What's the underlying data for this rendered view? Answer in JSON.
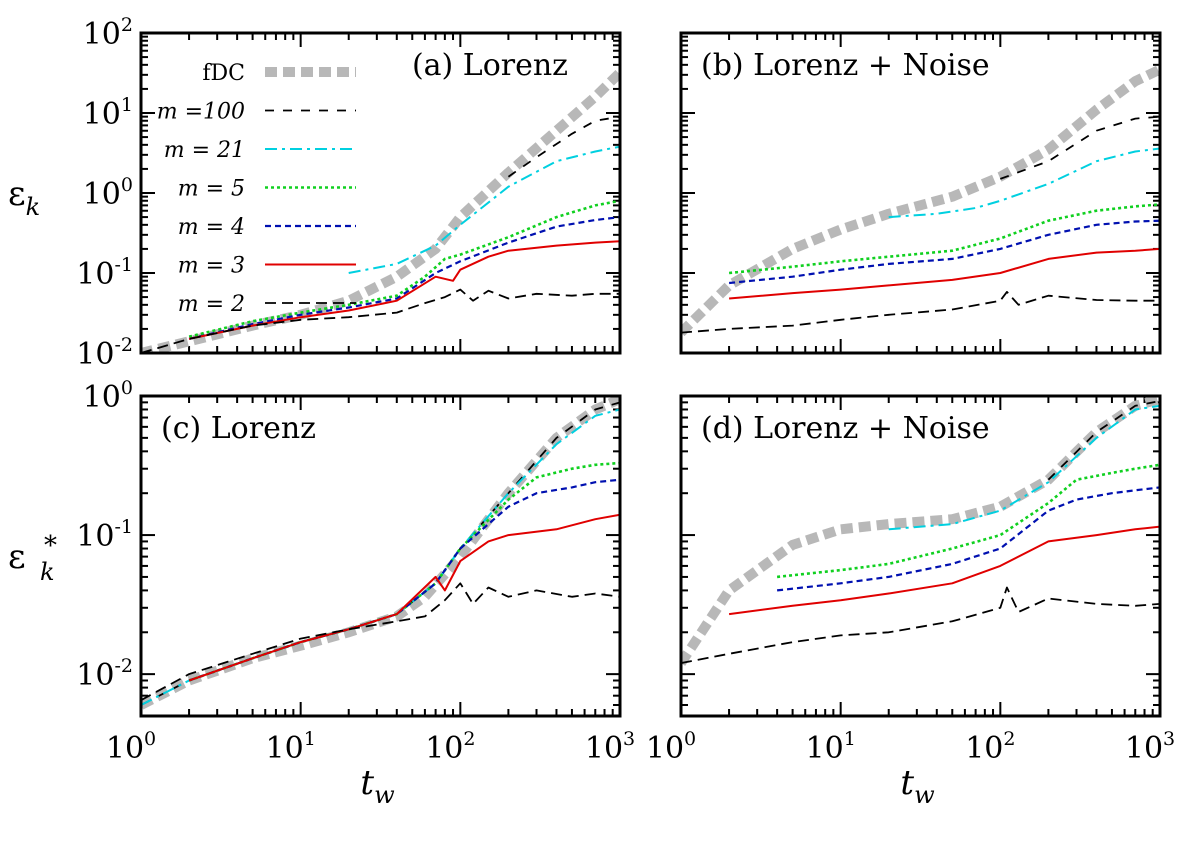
{
  "chart_data": [
    {
      "type": "line",
      "id": "a",
      "title": "(a) Lorenz",
      "xlabel": "",
      "ylabel_base": "ε",
      "ylabel_sub": "k",
      "ylabel_sup": "",
      "log_x": true,
      "log_y": true,
      "xlim": [
        1,
        1000
      ],
      "ylim": [
        0.01,
        100
      ],
      "x_ticks": [
        {
          "base": "10",
          "exp": "0"
        },
        {
          "base": "10",
          "exp": "1"
        },
        {
          "base": "10",
          "exp": "2"
        },
        {
          "base": "10",
          "exp": "3"
        }
      ],
      "y_ticks": [
        {
          "base": "10",
          "exp": "-2"
        },
        {
          "base": "10",
          "exp": "-1"
        },
        {
          "base": "10",
          "exp": "0"
        },
        {
          "base": "10",
          "exp": "1"
        },
        {
          "base": "10",
          "exp": "2"
        }
      ],
      "show_x_tick_labels": false,
      "show_y_tick_labels": true,
      "series": [
        {
          "name": "fDC",
          "x": [
            1,
            2,
            5,
            10,
            20,
            40,
            70,
            100,
            200,
            400,
            700,
            1000
          ],
          "y": [
            0.01,
            0.014,
            0.022,
            0.03,
            0.045,
            0.09,
            0.2,
            0.5,
            1.8,
            6,
            16,
            32
          ]
        },
        {
          "name": "m =100",
          "x": [
            200,
            300,
            500,
            700,
            1000
          ],
          "y": [
            1.6,
            2.8,
            5.5,
            8,
            9
          ]
        },
        {
          "name": "m = 21",
          "x": [
            20,
            40,
            70,
            100,
            200,
            400,
            700,
            1000
          ],
          "y": [
            0.1,
            0.13,
            0.22,
            0.4,
            1.2,
            2.5,
            3.3,
            3.8
          ]
        },
        {
          "name": "m = 5",
          "x": [
            2,
            5,
            10,
            20,
            40,
            60,
            80,
            100,
            200,
            400,
            700,
            1000
          ],
          "y": [
            0.016,
            0.025,
            0.032,
            0.04,
            0.052,
            0.09,
            0.15,
            0.17,
            0.28,
            0.5,
            0.7,
            0.8
          ]
        },
        {
          "name": "m = 4",
          "x": [
            2,
            5,
            10,
            20,
            40,
            70,
            100,
            200,
            400,
            700,
            1000
          ],
          "y": [
            0.015,
            0.023,
            0.03,
            0.037,
            0.048,
            0.1,
            0.14,
            0.24,
            0.38,
            0.46,
            0.5
          ]
        },
        {
          "name": "m = 3",
          "x": [
            2,
            5,
            10,
            20,
            40,
            70,
            90,
            100,
            150,
            200,
            400,
            700,
            1000
          ],
          "y": [
            0.015,
            0.022,
            0.028,
            0.034,
            0.045,
            0.09,
            0.08,
            0.11,
            0.16,
            0.19,
            0.22,
            0.24,
            0.25
          ]
        },
        {
          "name": "m = 2",
          "x": [
            1,
            2,
            5,
            10,
            20,
            40,
            60,
            80,
            100,
            120,
            150,
            200,
            300,
            500,
            700,
            1000
          ],
          "y": [
            0.01,
            0.015,
            0.022,
            0.026,
            0.028,
            0.032,
            0.042,
            0.05,
            0.062,
            0.045,
            0.06,
            0.048,
            0.055,
            0.052,
            0.055,
            0.055
          ]
        }
      ]
    },
    {
      "type": "line",
      "id": "b",
      "title": "(b) Lorenz + Noise",
      "xlabel": "",
      "ylabel_base": "",
      "ylabel_sub": "",
      "ylabel_sup": "",
      "log_x": true,
      "log_y": true,
      "xlim": [
        1,
        1000
      ],
      "ylim": [
        0.01,
        100
      ],
      "x_ticks": [
        {
          "base": "10",
          "exp": "0"
        },
        {
          "base": "10",
          "exp": "1"
        },
        {
          "base": "10",
          "exp": "2"
        },
        {
          "base": "10",
          "exp": "3"
        }
      ],
      "y_ticks": [
        {
          "base": "10",
          "exp": "-2"
        },
        {
          "base": "10",
          "exp": "-1"
        },
        {
          "base": "10",
          "exp": "0"
        },
        {
          "base": "10",
          "exp": "1"
        },
        {
          "base": "10",
          "exp": "2"
        }
      ],
      "show_x_tick_labels": false,
      "show_y_tick_labels": false,
      "series": [
        {
          "name": "fDC",
          "x": [
            1,
            2,
            5,
            10,
            20,
            50,
            100,
            200,
            400,
            700,
            1000
          ],
          "y": [
            0.018,
            0.07,
            0.2,
            0.35,
            0.55,
            0.9,
            1.6,
            3.5,
            11,
            25,
            35
          ]
        },
        {
          "name": "m =100",
          "x": [
            100,
            200,
            400,
            700,
            1000
          ],
          "y": [
            1.5,
            2.5,
            6,
            8.5,
            9
          ]
        },
        {
          "name": "m = 21",
          "x": [
            20,
            40,
            70,
            100,
            200,
            400,
            700,
            1000
          ],
          "y": [
            0.5,
            0.55,
            0.65,
            0.8,
            1.3,
            2.5,
            3.3,
            3.6
          ]
        },
        {
          "name": "m = 5",
          "x": [
            2,
            5,
            10,
            20,
            50,
            100,
            200,
            400,
            700,
            1000
          ],
          "y": [
            0.1,
            0.12,
            0.14,
            0.16,
            0.19,
            0.27,
            0.45,
            0.6,
            0.68,
            0.72
          ]
        },
        {
          "name": "m = 4",
          "x": [
            2,
            5,
            10,
            20,
            50,
            100,
            200,
            400,
            700,
            1000
          ],
          "y": [
            0.075,
            0.09,
            0.11,
            0.13,
            0.15,
            0.2,
            0.3,
            0.4,
            0.44,
            0.45
          ]
        },
        {
          "name": "m = 3",
          "x": [
            2,
            5,
            10,
            20,
            50,
            100,
            200,
            400,
            700,
            1000
          ],
          "y": [
            0.048,
            0.056,
            0.062,
            0.07,
            0.082,
            0.1,
            0.15,
            0.18,
            0.19,
            0.2
          ]
        },
        {
          "name": "m = 2",
          "x": [
            1,
            2,
            5,
            10,
            20,
            50,
            100,
            110,
            130,
            200,
            400,
            700,
            1000
          ],
          "y": [
            0.018,
            0.02,
            0.022,
            0.026,
            0.03,
            0.035,
            0.045,
            0.058,
            0.04,
            0.052,
            0.046,
            0.045,
            0.045
          ]
        }
      ]
    },
    {
      "type": "line",
      "id": "c",
      "title": "(c) Lorenz",
      "xlabel": "t_w",
      "ylabel_base": "ε",
      "ylabel_sub": "k",
      "ylabel_sup": "*",
      "log_x": true,
      "log_y": true,
      "xlim": [
        1,
        1000
      ],
      "ylim": [
        0.005,
        1
      ],
      "x_ticks": [
        {
          "base": "10",
          "exp": "0"
        },
        {
          "base": "10",
          "exp": "1"
        },
        {
          "base": "10",
          "exp": "2"
        },
        {
          "base": "10",
          "exp": "3"
        }
      ],
      "y_ticks": [
        {
          "base": "10",
          "exp": "-2"
        },
        {
          "base": "10",
          "exp": "-1"
        },
        {
          "base": "10",
          "exp": "0"
        }
      ],
      "show_x_tick_labels": true,
      "show_y_tick_labels": true,
      "series": [
        {
          "name": "fDC",
          "x": [
            1,
            2,
            5,
            10,
            20,
            40,
            60,
            100,
            200,
            400,
            700,
            1000
          ],
          "y": [
            0.006,
            0.009,
            0.013,
            0.016,
            0.02,
            0.026,
            0.036,
            0.07,
            0.2,
            0.5,
            0.8,
            0.95
          ]
        },
        {
          "name": "m =100",
          "x": [
            1,
            2,
            5,
            10,
            20,
            40,
            70,
            100,
            200,
            400,
            700,
            1000
          ],
          "y": [
            0.006,
            0.009,
            0.013,
            0.017,
            0.021,
            0.027,
            0.045,
            0.08,
            0.2,
            0.5,
            0.8,
            0.9
          ]
        },
        {
          "name": "m = 21",
          "x": [
            1,
            2,
            5,
            10,
            20,
            40,
            70,
            100,
            200,
            400,
            700,
            1000
          ],
          "y": [
            0.006,
            0.009,
            0.013,
            0.017,
            0.021,
            0.027,
            0.045,
            0.08,
            0.2,
            0.45,
            0.72,
            0.8
          ]
        },
        {
          "name": "m = 5",
          "x": [
            2,
            5,
            10,
            20,
            40,
            70,
            100,
            200,
            300,
            500,
            700,
            1000
          ],
          "y": [
            0.009,
            0.013,
            0.017,
            0.021,
            0.027,
            0.045,
            0.08,
            0.18,
            0.26,
            0.3,
            0.32,
            0.33
          ]
        },
        {
          "name": "m = 4",
          "x": [
            2,
            5,
            10,
            20,
            40,
            70,
            100,
            200,
            300,
            500,
            700,
            1000
          ],
          "y": [
            0.009,
            0.013,
            0.017,
            0.021,
            0.027,
            0.045,
            0.08,
            0.16,
            0.2,
            0.22,
            0.24,
            0.25
          ]
        },
        {
          "name": "m = 3",
          "x": [
            2,
            5,
            10,
            20,
            40,
            70,
            80,
            100,
            150,
            200,
            400,
            700,
            1000
          ],
          "y": [
            0.009,
            0.013,
            0.017,
            0.021,
            0.027,
            0.05,
            0.04,
            0.065,
            0.09,
            0.1,
            0.11,
            0.13,
            0.14
          ]
        },
        {
          "name": "m = 2",
          "x": [
            1,
            2,
            5,
            10,
            20,
            40,
            60,
            80,
            100,
            120,
            150,
            200,
            300,
            500,
            700,
            1000
          ],
          "y": [
            0.0065,
            0.01,
            0.014,
            0.018,
            0.021,
            0.024,
            0.026,
            0.034,
            0.045,
            0.032,
            0.042,
            0.036,
            0.04,
            0.036,
            0.038,
            0.036
          ]
        }
      ]
    },
    {
      "type": "line",
      "id": "d",
      "title": "(d) Lorenz + Noise",
      "xlabel": "t_w",
      "ylabel_base": "",
      "ylabel_sub": "",
      "ylabel_sup": "",
      "log_x": true,
      "log_y": true,
      "xlim": [
        1,
        1000
      ],
      "ylim": [
        0.005,
        1
      ],
      "x_ticks": [
        {
          "base": "10",
          "exp": "0"
        },
        {
          "base": "10",
          "exp": "1"
        },
        {
          "base": "10",
          "exp": "2"
        },
        {
          "base": "10",
          "exp": "3"
        }
      ],
      "y_ticks": [
        {
          "base": "10",
          "exp": "-2"
        },
        {
          "base": "10",
          "exp": "-1"
        },
        {
          "base": "10",
          "exp": "0"
        }
      ],
      "show_x_tick_labels": true,
      "show_y_tick_labels": false,
      "series": [
        {
          "name": "fDC",
          "x": [
            1,
            2,
            5,
            10,
            20,
            50,
            100,
            200,
            400,
            700,
            1000
          ],
          "y": [
            0.012,
            0.04,
            0.085,
            0.11,
            0.12,
            0.13,
            0.16,
            0.25,
            0.55,
            0.85,
            0.95
          ]
        },
        {
          "name": "m =100",
          "x": [
            200,
            400,
            700,
            1000
          ],
          "y": [
            0.25,
            0.55,
            0.85,
            0.92
          ]
        },
        {
          "name": "m = 21",
          "x": [
            20,
            50,
            100,
            200,
            400,
            700,
            1000
          ],
          "y": [
            0.11,
            0.12,
            0.15,
            0.24,
            0.5,
            0.8,
            0.85
          ]
        },
        {
          "name": "m = 5",
          "x": [
            4,
            10,
            20,
            50,
            100,
            200,
            300,
            500,
            700,
            1000
          ],
          "y": [
            0.05,
            0.056,
            0.062,
            0.08,
            0.1,
            0.17,
            0.25,
            0.28,
            0.3,
            0.32
          ]
        },
        {
          "name": "m = 4",
          "x": [
            4,
            10,
            20,
            50,
            100,
            200,
            300,
            500,
            700,
            1000
          ],
          "y": [
            0.04,
            0.045,
            0.05,
            0.062,
            0.08,
            0.15,
            0.18,
            0.2,
            0.21,
            0.22
          ]
        },
        {
          "name": "m = 3",
          "x": [
            2,
            5,
            10,
            20,
            50,
            100,
            200,
            400,
            700,
            1000
          ],
          "y": [
            0.027,
            0.031,
            0.034,
            0.038,
            0.045,
            0.06,
            0.09,
            0.1,
            0.11,
            0.115
          ]
        },
        {
          "name": "m = 2",
          "x": [
            1,
            2,
            5,
            10,
            20,
            50,
            100,
            110,
            130,
            200,
            400,
            700,
            1000
          ],
          "y": [
            0.012,
            0.014,
            0.017,
            0.019,
            0.02,
            0.024,
            0.03,
            0.042,
            0.028,
            0.035,
            0.032,
            0.031,
            0.032
          ]
        }
      ]
    }
  ],
  "legend": {
    "placement": "panel-a-top-left",
    "items": [
      {
        "series": "fDC",
        "label": "fDC"
      },
      {
        "series": "m =100",
        "label": "m =100"
      },
      {
        "series": "m = 21",
        "label": "m = 21"
      },
      {
        "series": "m = 5",
        "label": "m = 5"
      },
      {
        "series": "m = 4",
        "label": "m = 4"
      },
      {
        "series": "m = 3",
        "label": "m = 3"
      },
      {
        "series": "m = 2",
        "label": "m = 2"
      }
    ]
  },
  "series_styles": {
    "fDC": {
      "color": "#b8b8b8",
      "dash": "solid-thick"
    },
    "m =100": {
      "color": "#000000",
      "dash": "dashed-long"
    },
    "m = 21": {
      "color": "#00d0e0",
      "dash": "dash-dot"
    },
    "m = 5": {
      "color": "#10d020",
      "dash": "dotted"
    },
    "m = 4": {
      "color": "#0010b0",
      "dash": "dashed-short"
    },
    "m = 3": {
      "color": "#e00000",
      "dash": "solid"
    },
    "m = 2": {
      "color": "#000000",
      "dash": "dashed"
    }
  }
}
